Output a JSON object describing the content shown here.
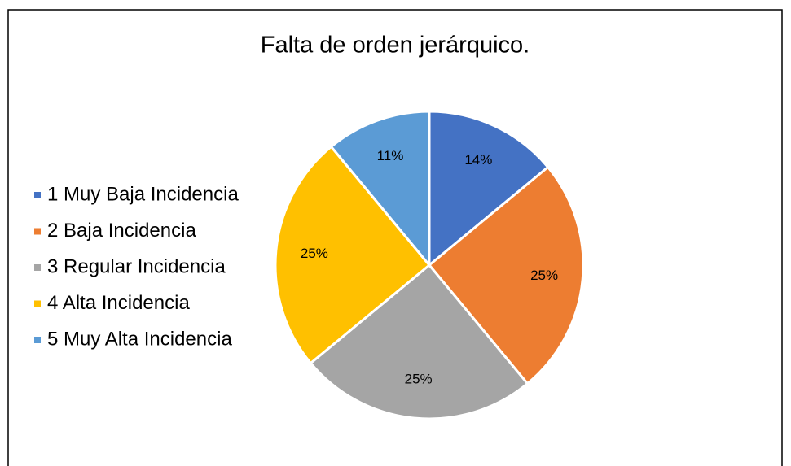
{
  "chart_data": {
    "type": "pie",
    "title": "Falta de orden jerárquico.",
    "categories": [
      "1 Muy Baja Incidencia",
      "2 Baja Incidencia",
      "3 Regular Incidencia",
      "4 Alta Incidencia",
      "5 Muy Alta Incidencia"
    ],
    "values": [
      14,
      25,
      25,
      25,
      11
    ],
    "value_labels": [
      "14%",
      "25%",
      "25%",
      "25%",
      "11%"
    ],
    "colors": [
      "#4472c4",
      "#ed7d31",
      "#a5a5a5",
      "#ffc000",
      "#5b9bd5"
    ],
    "legend": "left"
  }
}
